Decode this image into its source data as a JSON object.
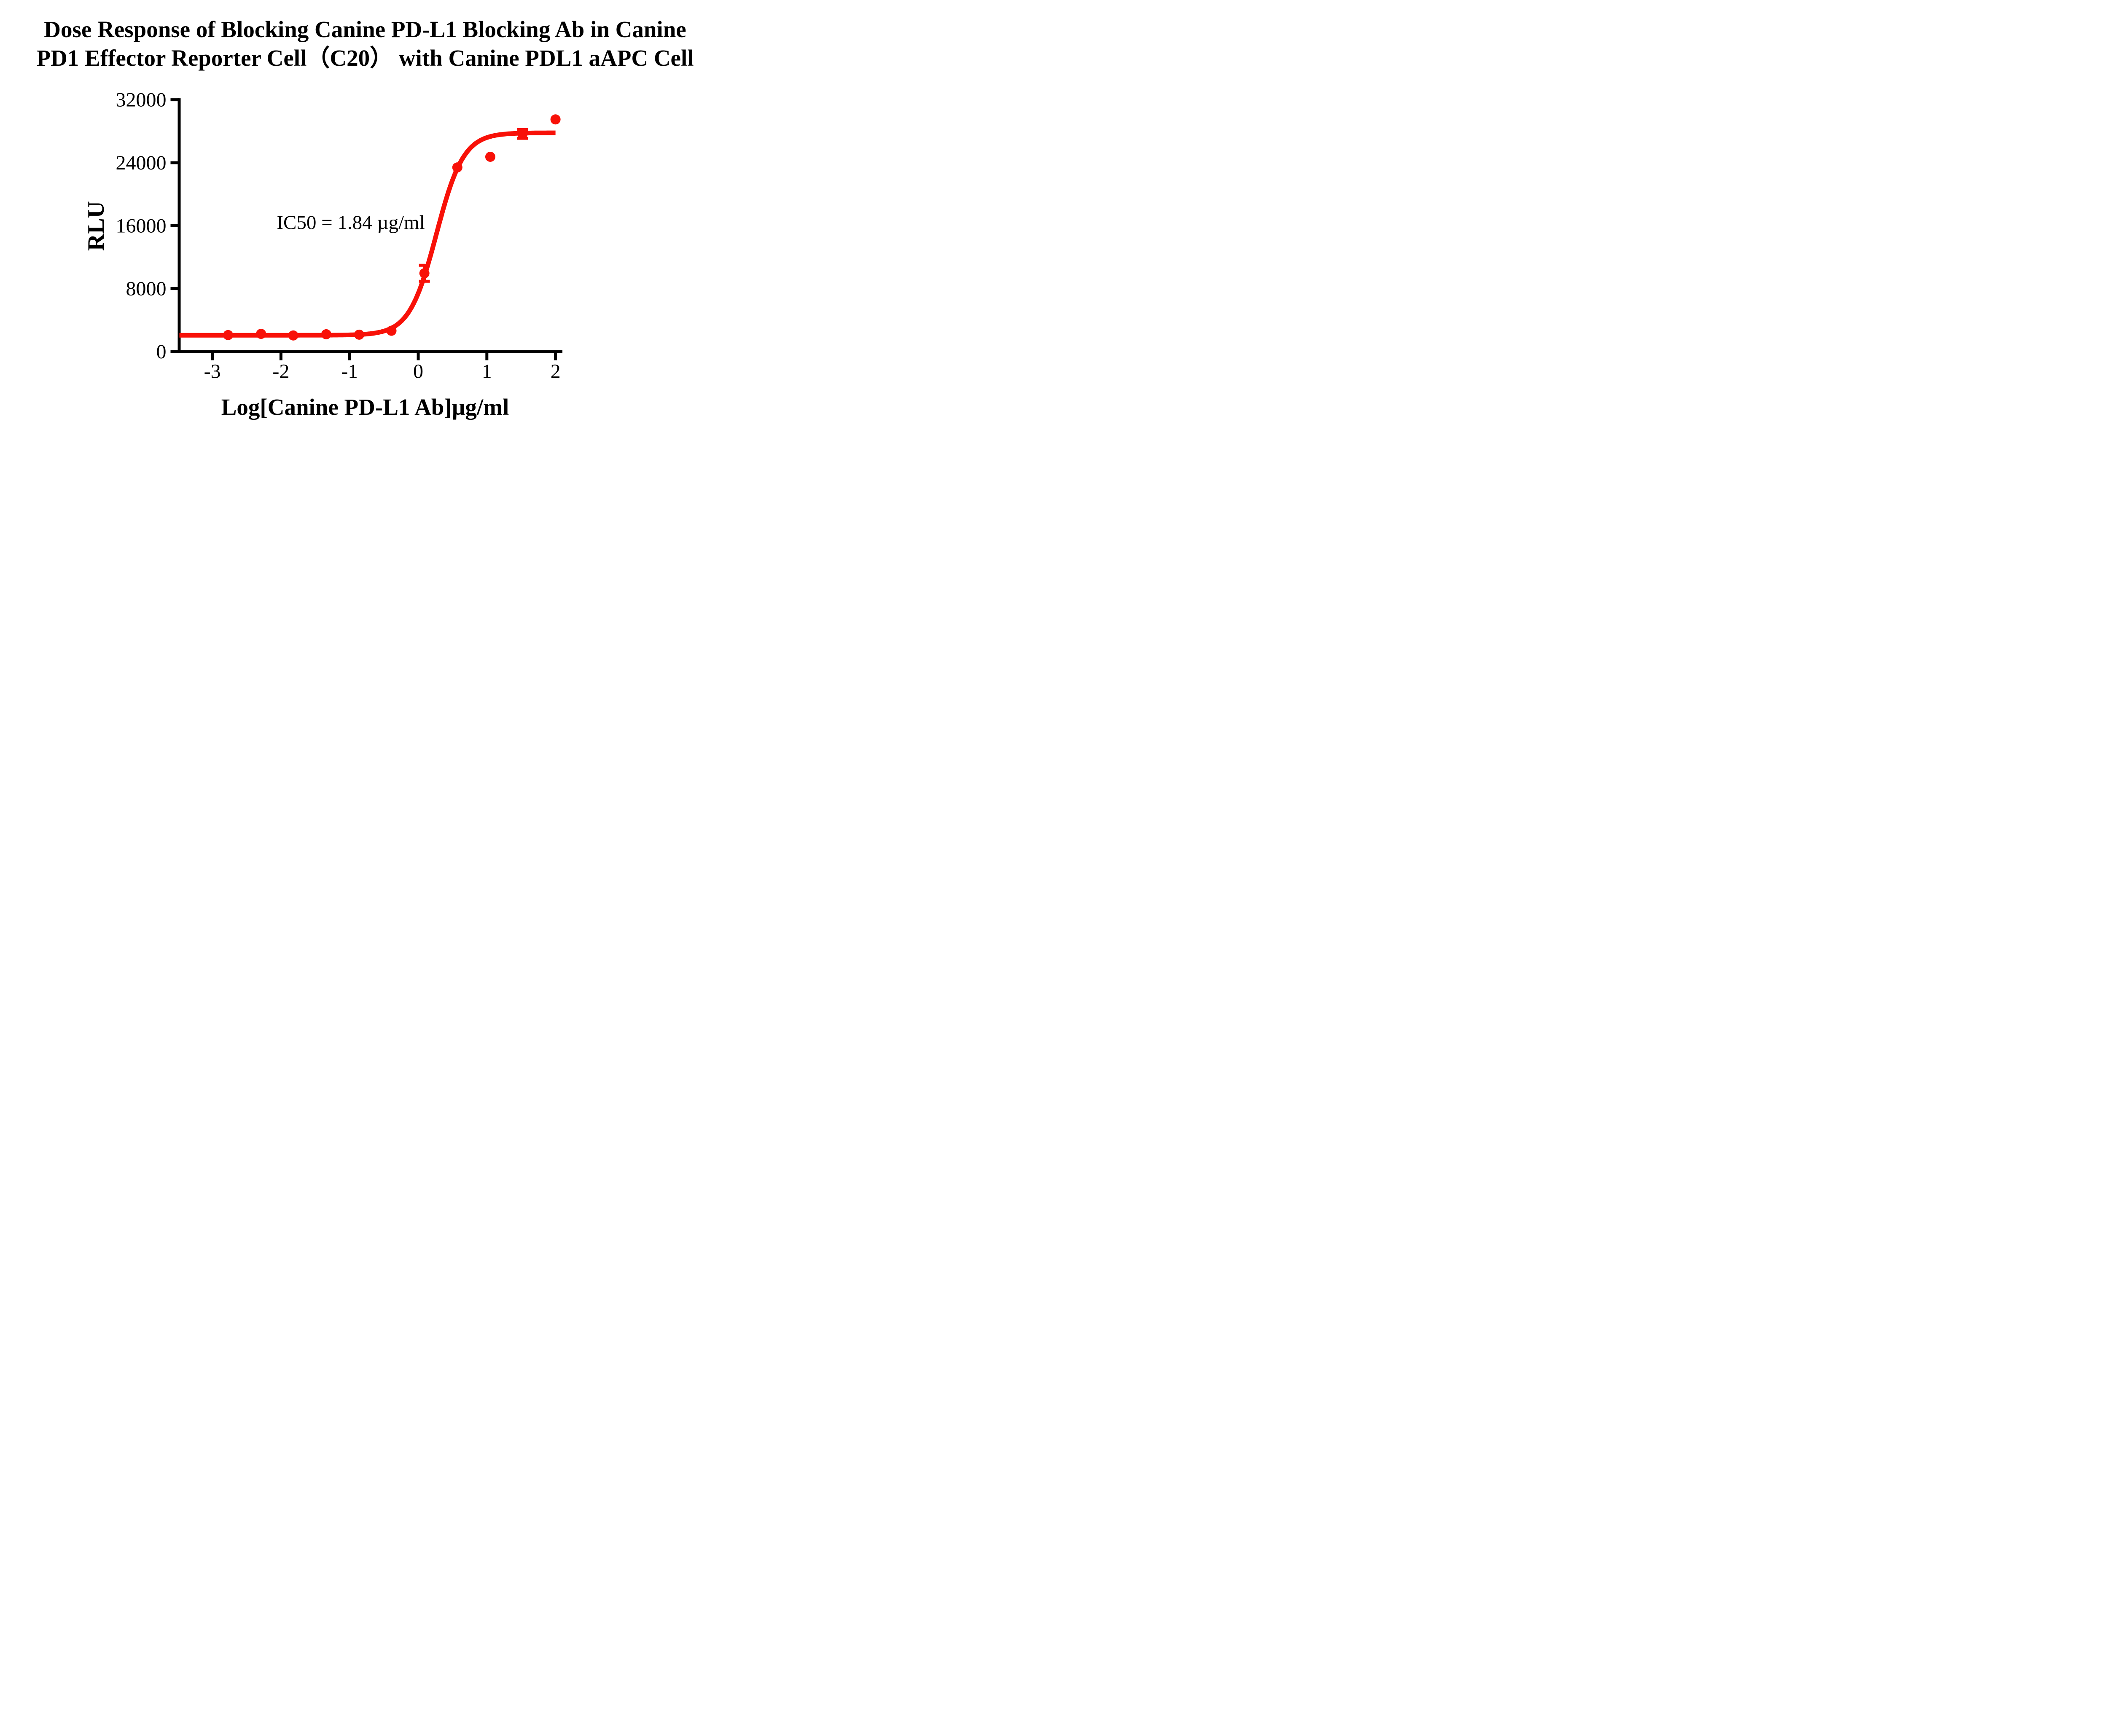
{
  "title": {
    "line1": "Dose Response of Blocking Canine PD-L1 Blocking Ab in Canine",
    "line2": "PD1 Effector Reporter Cell（C20） with Canine PDL1 aAPC Cell"
  },
  "chart_data": {
    "type": "scatter",
    "title": "Dose Response of Blocking Canine PD-L1 Blocking Ab in Canine PD1 Effector Reporter Cell（C20） with Canine PDL1 aAPC Cell",
    "xlabel": "Log[Canine PD-L1 Ab]µg/ml",
    "ylabel": "RLU",
    "annotation": "IC50 = 1.84 µg/ml",
    "ic50_value": "1.84 µg/ml",
    "xlim": [
      -3.48,
      2.05
    ],
    "ylim": [
      0,
      32000
    ],
    "x_ticks": [
      -3,
      -2,
      -1,
      0,
      1,
      2
    ],
    "y_ticks": [
      0,
      8000,
      16000,
      24000,
      32000
    ],
    "grid": false,
    "legend": "none",
    "axis_color": "#000000",
    "series": [
      {
        "name": "Canine PD-L1 Blocking Ab",
        "color": "#f81108",
        "marker": "circle",
        "points": [
          {
            "x": -2.77,
            "y": 2100
          },
          {
            "x": -2.29,
            "y": 2250
          },
          {
            "x": -1.82,
            "y": 2050
          },
          {
            "x": -1.34,
            "y": 2200
          },
          {
            "x": -0.86,
            "y": 2150
          },
          {
            "x": -0.39,
            "y": 2650
          },
          {
            "x": 0.09,
            "y": 9950,
            "err": 1020
          },
          {
            "x": 0.57,
            "y": 23400
          },
          {
            "x": 1.05,
            "y": 24750
          },
          {
            "x": 1.52,
            "y": 27650,
            "err": 550
          },
          {
            "x": 2.0,
            "y": 29500
          }
        ],
        "fit": {
          "model": "four-parameter logistic",
          "bottom": 2080,
          "top": 27800,
          "logIC50": 0.265,
          "hillslope": 2.2,
          "x_start": -3.48,
          "x_end": 2.0
        }
      }
    ]
  }
}
